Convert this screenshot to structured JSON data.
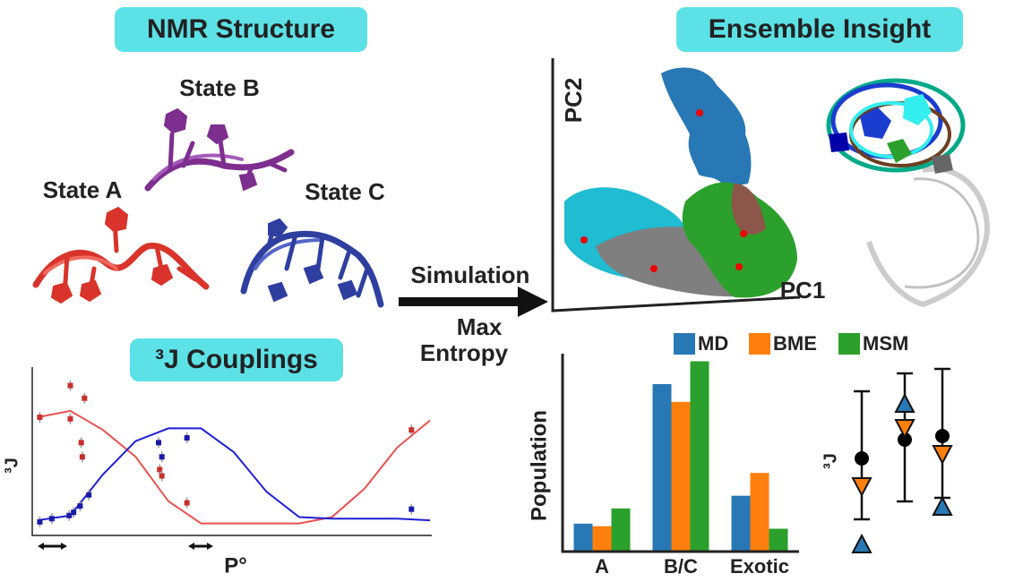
{
  "header": {
    "left": "NMR Structure",
    "right": "Ensemble Insight"
  },
  "states": [
    "State A",
    "State B",
    "State C"
  ],
  "arrow": {
    "top": "Simulation",
    "bottom": [
      "Max",
      "Entropy"
    ]
  },
  "pca": {
    "x_label": "PC1",
    "y_label": "PC2"
  },
  "chart_data": [
    {
      "type": "line",
      "title": "³J Couplings",
      "x_label": "P°",
      "y_label": "³J",
      "xlim": [
        0,
        360
      ],
      "ylim": [
        0,
        10
      ],
      "x": [
        0,
        30,
        60,
        90,
        120,
        150,
        180,
        210,
        240,
        270,
        300,
        330,
        360
      ],
      "series": [
        {
          "color": "#e8534f",
          "values": [
            7.4,
            7.8,
            6.6,
            4.9,
            2.1,
            0.7,
            0.7,
            0.7,
            0.7,
            1.1,
            2.9,
            5.5,
            7.2
          ]
        },
        {
          "color": "#1f1fd6",
          "values": [
            0.9,
            1.2,
            3.8,
            5.9,
            6.7,
            6.7,
            5.2,
            2.7,
            1.1,
            1.0,
            1.0,
            1.0,
            0.9
          ]
        }
      ],
      "points": [
        {
          "color": "#c9302c",
          "x": [
            2,
            30,
            30,
            40,
            41,
            43,
            112,
            114,
            137,
            343
          ],
          "values": [
            7.4,
            9.4,
            7.3,
            5.8,
            4.9,
            8.6,
            4.1,
            3.7,
            2.0,
            6.6
          ]
        },
        {
          "color": "#1a1aa8",
          "x": [
            2,
            13,
            29,
            33,
            39,
            47,
            111,
            114,
            137,
            343
          ],
          "values": [
            0.8,
            1.0,
            1.2,
            1.4,
            1.8,
            2.5,
            5.8,
            4.9,
            6.1,
            1.6
          ]
        }
      ]
    },
    {
      "type": "bar",
      "y_label": "Population",
      "categories": [
        "A",
        "B/C",
        "Exotic"
      ],
      "ylim": [
        0,
        0.78
      ],
      "legend": "top",
      "series": [
        {
          "name": "MD",
          "color": "#2878b5",
          "values": [
            0.11,
            0.66,
            0.22
          ]
        },
        {
          "name": "BME",
          "color": "#ff7f0e",
          "values": [
            0.1,
            0.59,
            0.31
          ]
        },
        {
          "name": "MSM",
          "color": "#2ca02c",
          "values": [
            0.17,
            0.75,
            0.09
          ]
        }
      ]
    },
    {
      "type": "errorbar",
      "y_label": "³J",
      "ylim": [
        0,
        11
      ],
      "low": [
        2.0,
        3.0,
        3.2
      ],
      "high": [
        9.15,
        10.15,
        10.4
      ],
      "series": [
        {
          "marker": "circle",
          "color": "#000000",
          "values": [
            5.4,
            6.45,
            6.65
          ]
        },
        {
          "marker": "triangle-down",
          "color": "#ff7f0e",
          "values": [
            3.85,
            7.1,
            5.65
          ]
        },
        {
          "marker": "triangle-up",
          "color": "#2878b5",
          "values": [
            0.6,
            8.45,
            2.7
          ]
        }
      ]
    }
  ]
}
